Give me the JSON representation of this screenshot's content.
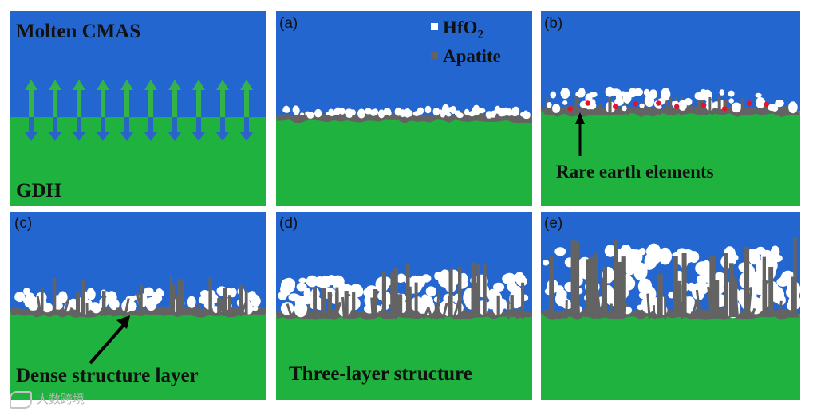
{
  "colors": {
    "cmas": "#2466cf",
    "gdh": "#1fb23f",
    "apatite": "#636363",
    "hfo2": "#ffffff",
    "rare_earth": "#e8102a",
    "arrow_up": "#33b34a",
    "arrow_down": "#2a64c8"
  },
  "panels": [
    {
      "id": "schematic",
      "labels": {
        "top": "Molten CMAS",
        "bottom": "GDH"
      }
    },
    {
      "id": "a",
      "tag": "(a)",
      "legend": [
        {
          "symbol": "HfO",
          "sub": "2"
        },
        {
          "symbol": "Apatite",
          "sub": ""
        }
      ]
    },
    {
      "id": "b",
      "tag": "(b)",
      "caption": "Rare earth elements"
    },
    {
      "id": "c",
      "tag": "(c)",
      "caption": "Dense structure layer"
    },
    {
      "id": "d",
      "tag": "(d)",
      "caption": "Three-layer structure"
    },
    {
      "id": "e",
      "tag": "(e)"
    }
  ],
  "watermark": {
    "icon": "logo-icon",
    "text": "大数跨境"
  }
}
